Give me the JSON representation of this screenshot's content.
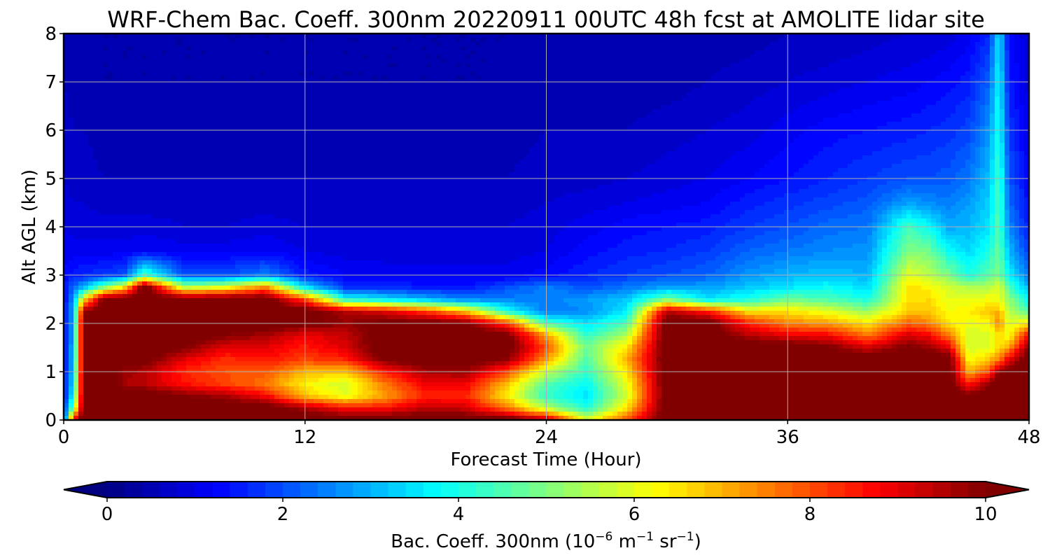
{
  "chart_data": {
    "type": "heatmap",
    "title": "WRF-Chem Bac. Coeff. 300nm  20220911 00UTC 48h fcst at AMOLITE lidar site",
    "xlabel": "Forecast Time (Hour)",
    "ylabel": "Alt AGL (km)",
    "xlim": [
      0,
      48
    ],
    "ylim": [
      0,
      8
    ],
    "xticks": [
      0,
      12,
      24,
      36,
      48
    ],
    "yticks": [
      0,
      1,
      2,
      3,
      4,
      5,
      6,
      7,
      8
    ],
    "grid": true,
    "colormap": "jet",
    "colorbar": {
      "label_main": "Bac. Coeff. 300nm  (10",
      "exp1": "−6",
      "label_mid": " m",
      "exp2": "−1",
      "label_tail": " sr",
      "exp3": "−1",
      "label_close": ")",
      "range": [
        0,
        10
      ],
      "ticks": [
        0,
        2,
        4,
        6,
        8,
        10
      ],
      "extend": "both",
      "levels": 50
    },
    "profile_hours": [
      0,
      0.5,
      1,
      2,
      3,
      4,
      6,
      8,
      10,
      12,
      14,
      16,
      18,
      20,
      22,
      24,
      26,
      28,
      30,
      32,
      34,
      36,
      38,
      40,
      42,
      43,
      44,
      45,
      46,
      46.5,
      47,
      48
    ],
    "profile_levels_km": [
      0,
      0.25,
      0.5,
      0.75,
      1,
      1.25,
      1.5,
      1.75,
      2,
      2.25,
      2.5,
      2.75,
      3,
      3.5,
      4,
      4.5,
      5,
      6,
      7,
      8
    ],
    "values": [
      [
        1.5,
        1.4,
        1.3,
        1.3,
        1.3,
        1.3,
        1.3,
        1.3,
        1.3,
        1.3,
        1.2,
        1.2,
        1.2,
        1.1,
        1.0,
        0.9,
        0.8,
        0.7,
        0.6,
        0.5
      ],
      [
        9.0,
        5.0,
        4.0,
        3.5,
        3.3,
        3.2,
        3.1,
        3.0,
        3.0,
        2.9,
        2.8,
        2.3,
        1.5,
        1.1,
        0.9,
        0.8,
        0.7,
        0.6,
        0.5,
        0.4
      ],
      [
        10.5,
        10.5,
        10.5,
        10.5,
        10.5,
        10.5,
        10.5,
        10.5,
        10.5,
        9.8,
        6.5,
        3.0,
        1.6,
        1.1,
        0.9,
        0.8,
        0.7,
        0.6,
        0.5,
        0.4
      ],
      [
        10.5,
        10.5,
        10.5,
        10.5,
        10.5,
        10.5,
        10.5,
        10.5,
        10.5,
        10.5,
        10.2,
        5.0,
        1.8,
        1.1,
        0.9,
        0.7,
        0.6,
        0.5,
        0.4,
        0.4
      ],
      [
        10.5,
        10.5,
        10.5,
        9.6,
        9.8,
        10.4,
        10.5,
        10.5,
        10.5,
        10.5,
        10.5,
        6.5,
        2.0,
        1.1,
        0.9,
        0.7,
        0.6,
        0.5,
        0.4,
        0.4
      ],
      [
        10.5,
        10.5,
        10.5,
        9.4,
        9.5,
        10.3,
        10.5,
        10.5,
        10.5,
        10.5,
        10.5,
        10.5,
        4.5,
        1.2,
        0.9,
        0.7,
        0.6,
        0.5,
        0.4,
        0.4
      ],
      [
        10.5,
        10.5,
        10.0,
        8.6,
        8.4,
        9.0,
        10.0,
        10.5,
        10.5,
        10.5,
        10.3,
        5.5,
        2.0,
        1.1,
        0.8,
        0.7,
        0.6,
        0.5,
        0.4,
        0.4
      ],
      [
        10.5,
        10.5,
        9.6,
        8.1,
        8.0,
        8.3,
        9.0,
        10.0,
        10.5,
        10.5,
        10.5,
        6.0,
        2.0,
        1.1,
        0.8,
        0.7,
        0.6,
        0.5,
        0.4,
        0.4
      ],
      [
        10.5,
        10.5,
        8.8,
        7.6,
        7.9,
        8.6,
        9.0,
        9.6,
        10.5,
        10.5,
        10.5,
        7.5,
        2.5,
        1.2,
        0.9,
        0.7,
        0.6,
        0.5,
        0.4,
        0.4
      ],
      [
        10.5,
        9.6,
        6.8,
        6.3,
        7.0,
        8.1,
        8.5,
        8.9,
        10.2,
        10.5,
        8.0,
        3.5,
        1.5,
        1.0,
        0.8,
        0.7,
        0.6,
        0.5,
        0.4,
        0.4
      ],
      [
        10.5,
        8.6,
        6.0,
        5.8,
        6.8,
        8.4,
        9.1,
        9.3,
        9.8,
        9.5,
        4.0,
        1.7,
        1.2,
        0.9,
        0.8,
        0.7,
        0.6,
        0.5,
        0.4,
        0.4
      ],
      [
        10.5,
        8.6,
        7.2,
        7.6,
        8.5,
        10.1,
        10.5,
        10.5,
        10.3,
        9.0,
        3.5,
        1.6,
        1.1,
        0.9,
        0.8,
        0.7,
        0.6,
        0.5,
        0.4,
        0.4
      ],
      [
        10.5,
        9.4,
        8.4,
        8.9,
        9.6,
        10.5,
        10.5,
        10.5,
        10.3,
        8.2,
        3.0,
        1.5,
        1.1,
        0.9,
        0.8,
        0.7,
        0.6,
        0.5,
        0.4,
        0.4
      ],
      [
        10.5,
        9.2,
        8.4,
        8.9,
        9.7,
        10.5,
        10.5,
        10.5,
        10.1,
        6.8,
        2.5,
        1.4,
        1.1,
        0.9,
        0.8,
        0.7,
        0.6,
        0.5,
        0.4,
        0.4
      ],
      [
        10.5,
        7.6,
        6.4,
        6.9,
        8.1,
        9.9,
        10.5,
        10.3,
        8.3,
        4.0,
        2.5,
        2.0,
        1.1,
        0.9,
        0.8,
        0.7,
        0.6,
        0.5,
        0.4,
        0.4
      ],
      [
        9.5,
        5.5,
        4.2,
        4.6,
        5.7,
        7.2,
        8.0,
        7.2,
        4.5,
        2.4,
        2.5,
        2.5,
        1.3,
        1.0,
        0.9,
        0.8,
        0.7,
        0.6,
        0.5,
        0.4
      ],
      [
        6.0,
        4.0,
        3.5,
        3.8,
        4.2,
        4.5,
        4.8,
        4.2,
        3.5,
        2.6,
        2.8,
        2.0,
        1.6,
        1.3,
        1.1,
        0.9,
        0.7,
        0.6,
        0.5,
        0.4
      ],
      [
        8.0,
        6.5,
        5.8,
        6.0,
        6.5,
        7.0,
        6.5,
        5.5,
        4.5,
        3.6,
        3.2,
        2.4,
        1.8,
        1.5,
        1.3,
        1.0,
        0.8,
        0.6,
        0.5,
        0.4
      ],
      [
        10.5,
        10.5,
        10.5,
        10.5,
        10.5,
        10.5,
        10.5,
        10.5,
        10.5,
        9.5,
        5.0,
        2.8,
        2.0,
        1.6,
        1.4,
        1.1,
        0.9,
        0.7,
        0.5,
        0.4
      ],
      [
        10.5,
        10.5,
        10.5,
        10.5,
        10.5,
        10.5,
        10.5,
        10.5,
        10.5,
        8.5,
        3.5,
        2.8,
        2.2,
        1.8,
        1.5,
        1.2,
        1.0,
        0.8,
        0.6,
        0.5
      ],
      [
        10.5,
        10.5,
        10.5,
        10.5,
        10.5,
        10.5,
        10.5,
        9.5,
        8.5,
        6.5,
        4.0,
        3.2,
        2.7,
        2.2,
        1.8,
        1.5,
        1.2,
        0.9,
        0.7,
        0.5
      ],
      [
        10.5,
        10.5,
        10.5,
        10.5,
        10.5,
        10.5,
        10.5,
        9.0,
        7.5,
        6.5,
        4.8,
        3.5,
        3.0,
        2.4,
        2.0,
        1.7,
        1.4,
        1.1,
        0.8,
        0.6
      ],
      [
        10.5,
        10.5,
        10.5,
        10.5,
        10.5,
        10.5,
        10.1,
        8.8,
        7.2,
        6.0,
        4.5,
        3.8,
        3.2,
        2.6,
        2.3,
        1.9,
        1.6,
        1.3,
        0.9,
        0.6
      ],
      [
        10.5,
        10.5,
        10.5,
        10.5,
        10.5,
        10.5,
        9.2,
        7.6,
        6.5,
        5.2,
        4.0,
        3.4,
        3.0,
        2.7,
        2.4,
        2.1,
        1.8,
        1.4,
        1.0,
        0.7
      ],
      [
        10.5,
        10.5,
        10.5,
        10.5,
        10.5,
        10.5,
        10.1,
        9.2,
        7.8,
        6.8,
        6.5,
        6.5,
        6.0,
        5.0,
        4.4,
        2.8,
        2.0,
        1.5,
        1.1,
        0.8
      ],
      [
        10.5,
        10.5,
        10.5,
        10.5,
        10.5,
        10.5,
        9.8,
        8.8,
        7.5,
        6.8,
        6.6,
        6.3,
        5.6,
        4.9,
        3.8,
        2.6,
        2.0,
        1.6,
        1.2,
        0.8
      ],
      [
        10.5,
        10.5,
        10.5,
        10.5,
        10.5,
        10.5,
        9.0,
        7.6,
        6.5,
        6.2,
        6.0,
        5.8,
        5.0,
        3.8,
        2.9,
        2.5,
        2.1,
        1.7,
        1.3,
        0.9
      ],
      [
        10.5,
        10.5,
        10.1,
        8.5,
        7.0,
        6.2,
        5.8,
        5.8,
        6.1,
        6.4,
        6.0,
        5.5,
        4.0,
        3.4,
        3.0,
        2.8,
        2.4,
        1.9,
        1.5,
        1.1
      ],
      [
        10.5,
        10.5,
        10.5,
        9.8,
        8.0,
        6.8,
        6.0,
        5.9,
        6.2,
        6.8,
        6.2,
        5.5,
        4.6,
        4.0,
        3.5,
        3.3,
        3.1,
        2.7,
        2.2,
        1.6
      ],
      [
        10.5,
        10.5,
        10.5,
        10.5,
        9.8,
        7.5,
        6.5,
        6.5,
        7.5,
        7.0,
        6.0,
        6.0,
        5.0,
        4.8,
        4.6,
        4.6,
        4.4,
        4.0,
        3.8,
        3.5
      ],
      [
        10.5,
        10.5,
        10.5,
        10.5,
        10.2,
        9.0,
        7.2,
        6.1,
        5.8,
        5.6,
        5.2,
        4.5,
        3.7,
        3.1,
        2.6,
        2.3,
        2.1,
        1.8,
        1.5,
        1.3
      ],
      [
        10.5,
        10.5,
        10.5,
        10.5,
        10.5,
        10.5,
        10.0,
        8.8,
        6.5,
        4.5,
        3.6,
        3.0,
        2.4,
        1.8,
        1.5,
        1.3,
        1.2,
        1.0,
        0.9,
        0.8
      ]
    ]
  }
}
